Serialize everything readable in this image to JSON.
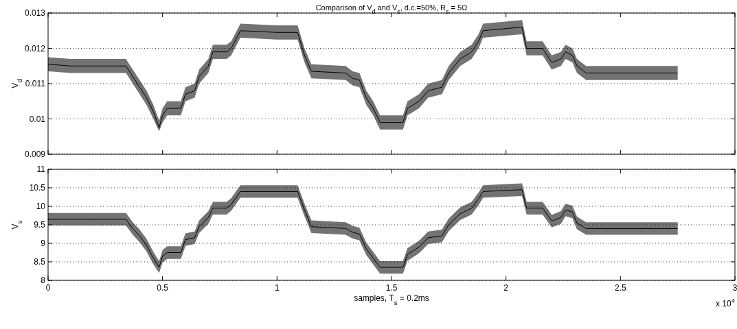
{
  "chart_data": [
    {
      "type": "line",
      "title": "Comparison of V$_{d}$ and V$_{s}$, d.c.=50%, R$_{s}$ = 5Ω",
      "ylabel": "V$_{d}$",
      "x": [
        0,
        0.1,
        0.2,
        0.3,
        0.34,
        0.37,
        0.4,
        0.43,
        0.46,
        0.485,
        0.5,
        0.52,
        0.58,
        0.6,
        0.64,
        0.66,
        0.7,
        0.72,
        0.78,
        0.8,
        0.84,
        1.0,
        1.09,
        1.12,
        1.15,
        1.3,
        1.33,
        1.36,
        1.39,
        1.42,
        1.45,
        1.55,
        1.57,
        1.62,
        1.66,
        1.72,
        1.75,
        1.8,
        1.85,
        1.88,
        1.9,
        2.07,
        2.09,
        2.16,
        2.2,
        2.24,
        2.26,
        2.29,
        2.31,
        2.35,
        2.75
      ],
      "series": [
        {
          "color": "#000000",
          "values": [
            0.01155,
            0.0115,
            0.0115,
            0.0115,
            0.0115,
            0.0112,
            0.0109,
            0.0106,
            0.0102,
            0.00975,
            0.0101,
            0.0103,
            0.0103,
            0.0107,
            0.0108,
            0.0112,
            0.0115,
            0.0119,
            0.0119,
            0.012,
            0.0125,
            0.01245,
            0.01245,
            0.0118,
            0.01135,
            0.0113,
            0.01115,
            0.0111,
            0.0106,
            0.0103,
            0.0099,
            0.0099,
            0.0103,
            0.0105,
            0.0108,
            0.0109,
            0.0113,
            0.0117,
            0.0119,
            0.0122,
            0.0125,
            0.0126,
            0.012,
            0.012,
            0.0116,
            0.0117,
            0.0119,
            0.0118,
            0.0115,
            0.0113,
            0.0113
          ],
          "lower": [
            0.01135,
            0.0113,
            0.0113,
            0.0113,
            0.0113,
            0.011,
            0.0107,
            0.0104,
            0.01,
            0.00965,
            0.0099,
            0.0101,
            0.0101,
            0.0105,
            0.0106,
            0.011,
            0.0113,
            0.0117,
            0.0117,
            0.0118,
            0.0123,
            0.01225,
            0.01225,
            0.0116,
            0.01115,
            0.0111,
            0.01095,
            0.0109,
            0.0104,
            0.0101,
            0.0097,
            0.0097,
            0.0101,
            0.0103,
            0.0106,
            0.0107,
            0.0111,
            0.0115,
            0.0117,
            0.012,
            0.0123,
            0.0124,
            0.0118,
            0.0118,
            0.0114,
            0.0115,
            0.0117,
            0.0116,
            0.0113,
            0.0111,
            0.0111
          ],
          "upper": [
            0.01175,
            0.0117,
            0.0117,
            0.0117,
            0.0117,
            0.0114,
            0.0111,
            0.0108,
            0.0104,
            0.00995,
            0.0103,
            0.0105,
            0.0105,
            0.0109,
            0.011,
            0.0114,
            0.0117,
            0.0121,
            0.0121,
            0.0122,
            0.0127,
            0.01265,
            0.01265,
            0.012,
            0.01155,
            0.0115,
            0.01135,
            0.0113,
            0.0108,
            0.0105,
            0.0101,
            0.0101,
            0.0105,
            0.0107,
            0.011,
            0.0111,
            0.0115,
            0.0119,
            0.0121,
            0.0124,
            0.0127,
            0.0128,
            0.0122,
            0.0122,
            0.0118,
            0.0119,
            0.0121,
            0.012,
            0.0117,
            0.0115,
            0.0115
          ]
        }
      ],
      "xlim": [
        0,
        3
      ],
      "xticks": [
        0,
        0.5,
        1,
        1.5,
        2,
        2.5,
        3
      ],
      "ylim": [
        0.009,
        0.013
      ],
      "yticks": [
        0.009,
        0.01,
        0.011,
        0.012,
        0.013
      ],
      "grid": "y",
      "tick_labels": "y"
    },
    {
      "type": "line",
      "ylabel": "V$_{s}$",
      "xlabel": "samples, T$_{s}$ = 0.2ms",
      "annotations": [
        "x 10$^{4}$"
      ],
      "x": [
        0,
        0.1,
        0.2,
        0.3,
        0.34,
        0.37,
        0.4,
        0.43,
        0.46,
        0.485,
        0.5,
        0.52,
        0.58,
        0.6,
        0.64,
        0.66,
        0.7,
        0.72,
        0.78,
        0.8,
        0.84,
        1.0,
        1.09,
        1.12,
        1.15,
        1.3,
        1.33,
        1.36,
        1.39,
        1.42,
        1.45,
        1.55,
        1.57,
        1.62,
        1.66,
        1.72,
        1.75,
        1.8,
        1.85,
        1.88,
        1.9,
        2.07,
        2.09,
        2.16,
        2.2,
        2.24,
        2.26,
        2.29,
        2.31,
        2.35,
        2.75
      ],
      "series": [
        {
          "color": "#000000",
          "values": [
            9.65,
            9.65,
            9.65,
            9.65,
            9.65,
            9.4,
            9.2,
            8.95,
            8.6,
            8.35,
            8.65,
            8.75,
            8.75,
            9.1,
            9.15,
            9.45,
            9.7,
            9.95,
            9.95,
            10.05,
            10.4,
            10.4,
            10.4,
            9.9,
            9.45,
            9.4,
            9.3,
            9.25,
            8.85,
            8.6,
            8.35,
            8.35,
            8.7,
            8.9,
            9.15,
            9.2,
            9.5,
            9.8,
            9.95,
            10.2,
            10.4,
            10.45,
            9.95,
            9.95,
            9.6,
            9.7,
            9.9,
            9.85,
            9.55,
            9.4,
            9.4
          ],
          "lower": [
            9.48,
            9.48,
            9.48,
            9.48,
            9.48,
            9.23,
            9.03,
            8.78,
            8.43,
            8.2,
            8.48,
            8.58,
            8.58,
            8.93,
            8.98,
            9.28,
            9.53,
            9.78,
            9.78,
            9.88,
            10.23,
            10.23,
            10.23,
            9.73,
            9.28,
            9.23,
            9.13,
            9.08,
            8.68,
            8.43,
            8.18,
            8.18,
            8.53,
            8.73,
            8.98,
            9.03,
            9.33,
            9.63,
            9.78,
            10.03,
            10.23,
            10.28,
            9.78,
            9.78,
            9.43,
            9.53,
            9.73,
            9.68,
            9.38,
            9.23,
            9.23
          ],
          "upper": [
            9.82,
            9.82,
            9.82,
            9.82,
            9.82,
            9.57,
            9.37,
            9.12,
            8.77,
            8.52,
            8.82,
            8.92,
            8.92,
            9.27,
            9.32,
            9.62,
            9.87,
            10.12,
            10.12,
            10.22,
            10.57,
            10.57,
            10.57,
            10.07,
            9.62,
            9.57,
            9.47,
            9.42,
            9.02,
            8.77,
            8.52,
            8.52,
            8.87,
            9.07,
            9.32,
            9.37,
            9.67,
            9.97,
            10.12,
            10.37,
            10.57,
            10.62,
            10.12,
            10.12,
            9.77,
            9.87,
            10.07,
            10.02,
            9.72,
            9.57,
            9.57
          ]
        }
      ],
      "xlim": [
        0,
        3
      ],
      "xticks": [
        0,
        0.5,
        1,
        1.5,
        2,
        2.5,
        3
      ],
      "ylim": [
        8,
        11
      ],
      "yticks": [
        8,
        8.5,
        9,
        9.5,
        10,
        10.5,
        11
      ],
      "grid": "y"
    }
  ]
}
